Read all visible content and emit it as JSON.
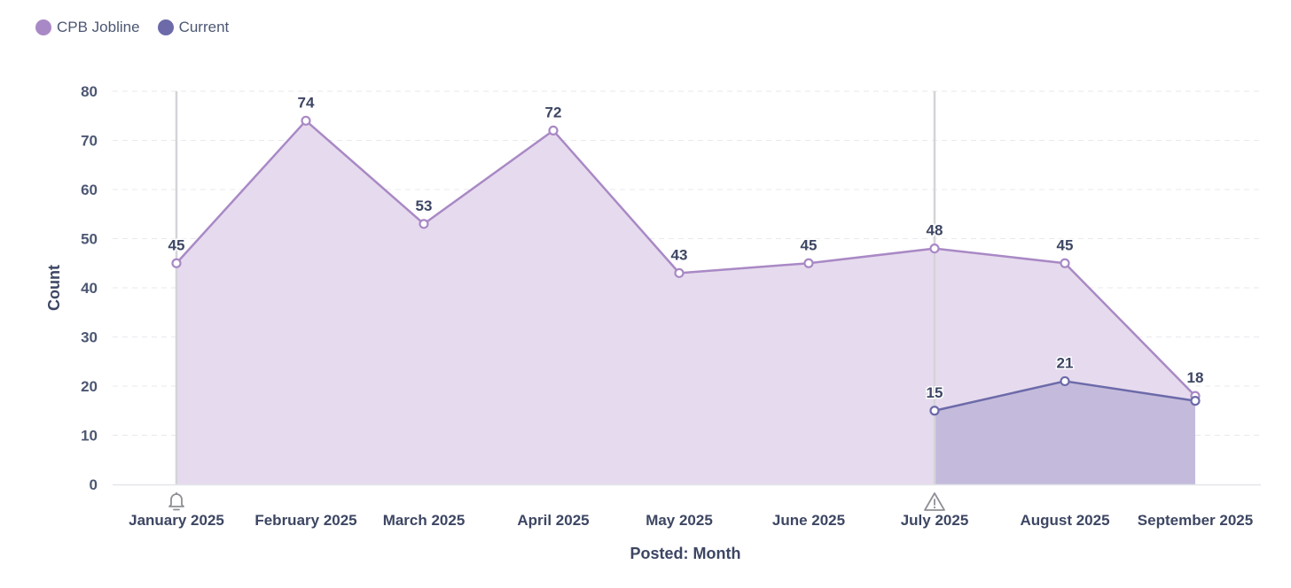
{
  "chart_data": {
    "type": "area",
    "title": "",
    "xlabel": "Posted: Month",
    "ylabel": "Count",
    "ylim": [
      0,
      80
    ],
    "yticks": [
      0,
      10,
      20,
      30,
      40,
      50,
      60,
      70,
      80
    ],
    "categories": [
      "January 2025",
      "February 2025",
      "March 2025",
      "April 2025",
      "May 2025",
      "June 2025",
      "July 2025",
      "August 2025",
      "September 2025"
    ],
    "legend_position": "top-left",
    "grid": true,
    "series": [
      {
        "name": "CPB Jobline",
        "color": "#a989c5",
        "fill": "#e6dbee",
        "values": [
          45,
          74,
          53,
          72,
          43,
          45,
          48,
          45,
          18
        ],
        "labels": [
          "45",
          "74",
          "53",
          "72",
          "43",
          "45",
          "48",
          "45",
          "18"
        ]
      },
      {
        "name": "Current",
        "color": "#6c6aa9",
        "fill": "#bdb5d8",
        "values": [
          null,
          null,
          null,
          null,
          null,
          null,
          15,
          21,
          17
        ],
        "labels": [
          "",
          "",
          "",
          "",
          "",
          "",
          "15",
          "21",
          ""
        ]
      }
    ],
    "annotations": [
      {
        "category": "January 2025",
        "marker": "bell-icon"
      },
      {
        "category": "July 2025",
        "marker": "warning-icon"
      }
    ]
  }
}
